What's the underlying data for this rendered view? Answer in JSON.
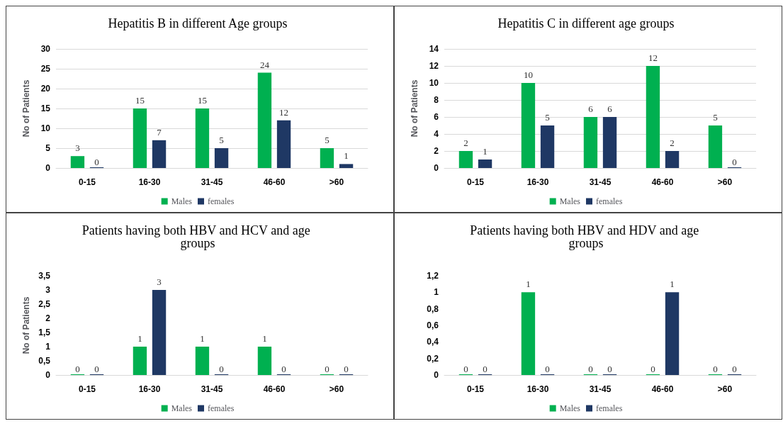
{
  "chart_data": [
    {
      "type": "bar",
      "title": "Hepatitis B in different Age groups",
      "ylabel": "No of Patients",
      "categories": [
        "0-15",
        "16-30",
        "31-45",
        "46-60",
        ">60"
      ],
      "series": [
        {
          "name": "Males",
          "color": "#00b050",
          "values": [
            3,
            15,
            15,
            24,
            5
          ]
        },
        {
          "name": "females",
          "color": "#1f3864",
          "values": [
            0,
            7,
            5,
            12,
            1
          ]
        }
      ],
      "ylim": [
        0,
        30
      ],
      "yticks": [
        0,
        5,
        10,
        15,
        20,
        25,
        30
      ],
      "grid": "y",
      "legend": "bottom",
      "data_labels": true
    },
    {
      "type": "bar",
      "title": "Hepatitis C in different age groups",
      "ylabel": "No of Patients",
      "categories": [
        "0-15",
        "16-30",
        "31-45",
        "46-60",
        ">60"
      ],
      "series": [
        {
          "name": "Males",
          "color": "#00b050",
          "values": [
            2,
            10,
            6,
            12,
            5
          ]
        },
        {
          "name": "females",
          "color": "#1f3864",
          "values": [
            1,
            5,
            6,
            2,
            0
          ]
        }
      ],
      "ylim": [
        0,
        14
      ],
      "yticks": [
        0,
        2,
        4,
        6,
        8,
        10,
        12,
        14
      ],
      "grid": "y",
      "legend": "bottom",
      "data_labels": true
    },
    {
      "type": "bar",
      "title": "Patients having both HBV and HCV and age groups",
      "ylabel": "No of Patients",
      "categories": [
        "0-15",
        "16-30",
        "31-45",
        "46-60",
        ">60"
      ],
      "series": [
        {
          "name": "Males",
          "color": "#00b050",
          "values": [
            0,
            1,
            1,
            1,
            0
          ]
        },
        {
          "name": "females",
          "color": "#1f3864",
          "values": [
            0,
            3,
            0,
            0,
            0
          ]
        }
      ],
      "ylim": [
        0,
        3.5
      ],
      "yticks": [
        0,
        {
          "value": 0.5,
          "label": "0,5"
        },
        1,
        {
          "value": 1.5,
          "label": "1,5"
        },
        2,
        {
          "value": 2.5,
          "label": "2,5"
        },
        3,
        {
          "value": 3.5,
          "label": "3,5"
        }
      ],
      "grid": false,
      "legend": "bottom",
      "data_labels": true
    },
    {
      "type": "bar",
      "title": "Patients having both HBV and HDV and age groups",
      "categories": [
        "0-15",
        "16-30",
        "31-45",
        "46-60",
        ">60"
      ],
      "series": [
        {
          "name": "Males",
          "color": "#00b050",
          "values": [
            0,
            1,
            0,
            0,
            0
          ]
        },
        {
          "name": "females",
          "color": "#1f3864",
          "values": [
            0,
            0,
            0,
            1,
            0
          ]
        }
      ],
      "ylim": [
        0,
        1.2
      ],
      "yticks": [
        0,
        {
          "value": 0.2,
          "label": "0,2"
        },
        {
          "value": 0.4,
          "label": "0,4"
        },
        {
          "value": 0.6,
          "label": "0,6"
        },
        {
          "value": 0.8,
          "label": "0,8"
        },
        1,
        {
          "value": 1.2,
          "label": "1,2"
        }
      ],
      "grid": false,
      "legend": "bottom",
      "data_labels": true
    }
  ]
}
